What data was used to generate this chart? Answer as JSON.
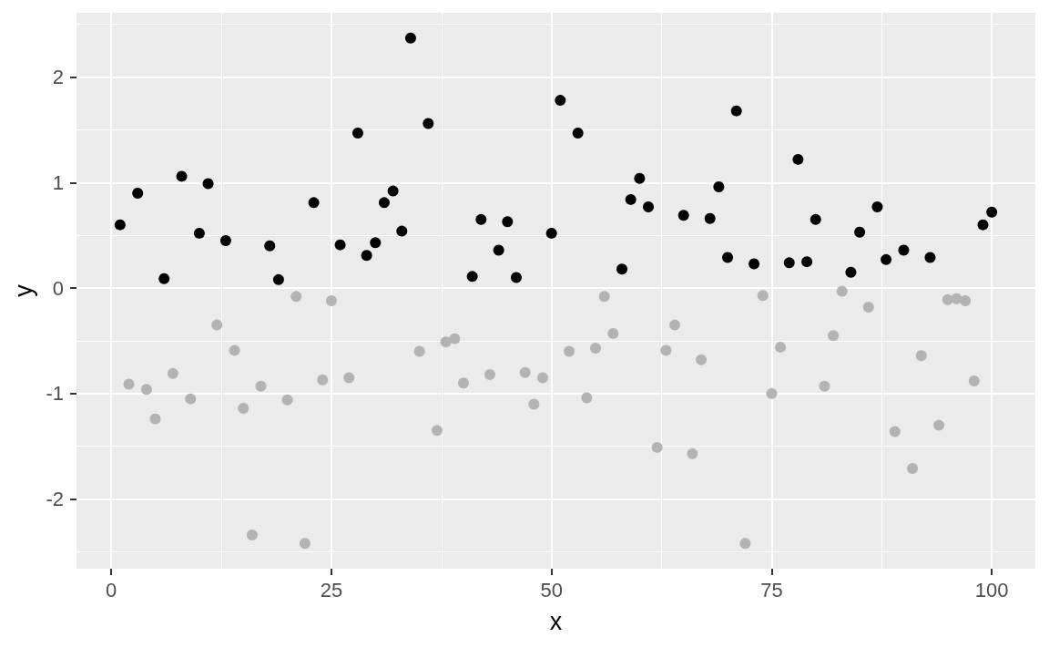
{
  "chart_data": {
    "type": "scatter",
    "xlabel": "x",
    "ylabel": "y",
    "xlim": [
      -3.95,
      104.95
    ],
    "ylim": [
      -2.66,
      2.61
    ],
    "xticks": [
      0,
      {
        "value": 12.5,
        "label": null
      },
      25,
      {
        "value": 37.5,
        "label": null
      },
      50,
      {
        "value": 62.5,
        "label": null
      },
      75,
      {
        "value": 87.5,
        "label": null
      },
      100
    ],
    "yticks": [
      {
        "value": -2.5,
        "label": null
      },
      -2,
      {
        "value": -1.5,
        "label": null
      },
      -1,
      {
        "value": -0.5,
        "label": null
      },
      0,
      {
        "value": 0.5,
        "label": null
      },
      1,
      {
        "value": 1.5,
        "label": null
      },
      2,
      {
        "value": 2.5,
        "label": null
      }
    ],
    "grid": true,
    "marker": "circle",
    "series": [
      {
        "color": "#000000",
        "x": [
          1,
          3,
          6,
          8,
          10,
          11,
          13,
          18,
          19,
          23,
          26,
          28,
          29,
          30,
          31,
          32,
          33,
          34,
          36,
          41,
          42,
          44,
          45,
          46,
          50,
          51,
          53,
          58,
          59,
          60,
          61,
          65,
          68,
          69,
          70,
          71,
          73,
          77,
          78,
          79,
          80,
          84,
          85,
          87,
          88,
          90,
          93,
          99,
          100
        ],
        "values": [
          0.6,
          0.9,
          0.09,
          1.06,
          0.52,
          0.99,
          0.45,
          0.4,
          0.08,
          0.81,
          0.41,
          1.47,
          0.31,
          0.43,
          0.81,
          0.92,
          0.54,
          2.37,
          1.56,
          0.11,
          0.65,
          0.36,
          0.63,
          0.1,
          0.52,
          1.78,
          1.47,
          0.18,
          0.84,
          1.04,
          0.77,
          0.69,
          0.66,
          0.96,
          0.29,
          1.68,
          0.23,
          0.24,
          1.22,
          0.25,
          0.65,
          0.15,
          0.53,
          0.77,
          0.27,
          0.36,
          0.29,
          0.6,
          0.72
        ]
      },
      {
        "color": "#b3b3b3",
        "x": [
          2,
          4,
          5,
          7,
          9,
          12,
          14,
          15,
          16,
          17,
          20,
          21,
          22,
          24,
          25,
          27,
          35,
          37,
          38,
          39,
          40,
          43,
          47,
          48,
          49,
          52,
          54,
          55,
          56,
          57,
          62,
          63,
          64,
          66,
          67,
          72,
          74,
          75,
          76,
          81,
          82,
          83,
          86,
          89,
          91,
          92,
          94,
          95,
          96,
          97,
          98
        ],
        "values": [
          -0.91,
          -0.96,
          -1.24,
          -0.81,
          -1.05,
          -0.35,
          -0.59,
          -1.14,
          -2.34,
          -0.93,
          -1.06,
          -0.08,
          -2.42,
          -0.87,
          -0.12,
          -0.85,
          -0.6,
          -1.35,
          -0.51,
          -0.48,
          -0.9,
          -0.82,
          -0.8,
          -1.1,
          -0.85,
          -0.6,
          -1.04,
          -0.57,
          -0.08,
          -0.43,
          -1.51,
          -0.59,
          -0.35,
          -1.57,
          -0.68,
          -2.42,
          -0.07,
          -1.0,
          -0.56,
          -0.93,
          -0.45,
          -0.03,
          -0.18,
          -1.36,
          -1.71,
          -0.64,
          -1.3,
          -0.11,
          -0.1,
          -0.12,
          -0.88
        ]
      }
    ]
  }
}
